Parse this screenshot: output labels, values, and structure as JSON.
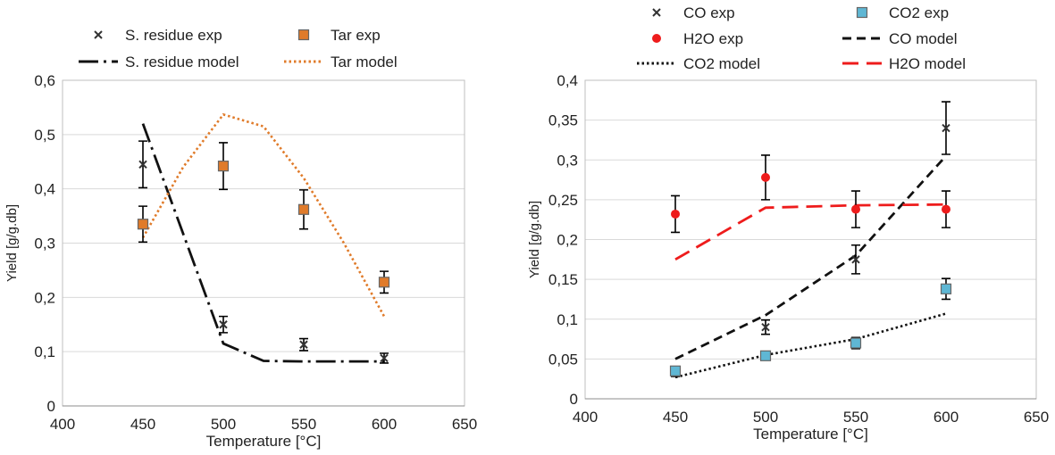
{
  "chart_data": [
    {
      "type": "scatter",
      "title": "",
      "xlabel": "Temperature [°C]",
      "ylabel": "Yield [g/g.db]",
      "xlim": [
        400,
        650
      ],
      "ylim": [
        0,
        0.6
      ],
      "xticks": [
        400,
        450,
        500,
        550,
        600,
        650
      ],
      "yticks": [
        0,
        0.1,
        0.2,
        0.3,
        0.4,
        0.5,
        0.6
      ],
      "xtick_labels": [
        "400",
        "450",
        "500",
        "550",
        "600",
        "650"
      ],
      "ytick_labels": [
        "0",
        "0,1",
        "0,2",
        "0,3",
        "0,4",
        "0,5",
        "0,6"
      ],
      "grid": "horizontal",
      "legend": "top",
      "series": [
        {
          "name": "S. residue exp",
          "kind": "markers",
          "marker": "x",
          "color": "#333333",
          "x": [
            450,
            500,
            550,
            600
          ],
          "y": [
            0.445,
            0.15,
            0.113,
            0.088
          ],
          "err": [
            0.043,
            0.015,
            0.011,
            0.009
          ]
        },
        {
          "name": "Tar exp",
          "kind": "markers",
          "marker": "square",
          "color": "#E07B2A",
          "x": [
            450,
            500,
            550,
            600
          ],
          "y": [
            0.335,
            0.442,
            0.362,
            0.228
          ],
          "err": [
            0.033,
            0.043,
            0.036,
            0.02
          ]
        },
        {
          "name": "S. residue model",
          "kind": "line",
          "dash": "longdash-dot",
          "color": "#111111",
          "x": [
            450,
            500,
            525,
            550,
            575,
            600
          ],
          "y": [
            0.52,
            0.115,
            0.083,
            0.082,
            0.082,
            0.082
          ]
        },
        {
          "name": "Tar model",
          "kind": "line",
          "dash": "dot",
          "color": "#E07B2A",
          "x": [
            450,
            475,
            500,
            525,
            550,
            575,
            600
          ],
          "y": [
            0.31,
            0.44,
            0.537,
            0.515,
            0.42,
            0.3,
            0.165
          ]
        }
      ]
    },
    {
      "type": "scatter",
      "title": "",
      "xlabel": "Temperature [°C]",
      "ylabel": "Yield [g/g.db]",
      "xlim": [
        400,
        650
      ],
      "ylim": [
        0,
        0.4
      ],
      "xticks": [
        400,
        450,
        500,
        550,
        600,
        650
      ],
      "yticks": [
        0,
        0.05,
        0.1,
        0.15,
        0.2,
        0.25,
        0.3,
        0.35,
        0.4
      ],
      "xtick_labels": [
        "400",
        "450",
        "500",
        "550",
        "600",
        "650"
      ],
      "ytick_labels": [
        "0",
        "0,05",
        "0,1",
        "0,15",
        "0,2",
        "0,25",
        "0,3",
        "0,35",
        "0,4"
      ],
      "grid": "horizontal",
      "legend": "top",
      "series": [
        {
          "name": "CO exp",
          "kind": "markers",
          "marker": "x",
          "color": "#333333",
          "x": [
            450,
            500,
            550,
            600
          ],
          "y": [
            0.033,
            0.09,
            0.175,
            0.34
          ],
          "err": [
            0.005,
            0.009,
            0.018,
            0.033
          ]
        },
        {
          "name": "CO2 exp",
          "kind": "markers",
          "marker": "square",
          "color": "#5FB7D4",
          "x": [
            450,
            500,
            550,
            600
          ],
          "y": [
            0.035,
            0.054,
            0.07,
            0.138
          ],
          "err": [
            0.004,
            0.005,
            0.007,
            0.013
          ]
        },
        {
          "name": "H2O exp",
          "kind": "markers",
          "marker": "circle",
          "color": "#EE1C1C",
          "x": [
            450,
            500,
            550,
            600
          ],
          "y": [
            0.232,
            0.278,
            0.238,
            0.238
          ],
          "err": [
            0.023,
            0.028,
            0.023,
            0.023
          ]
        },
        {
          "name": "CO model",
          "kind": "line",
          "dash": "dash",
          "color": "#111111",
          "x": [
            450,
            500,
            550,
            600
          ],
          "y": [
            0.05,
            0.105,
            0.18,
            0.305
          ]
        },
        {
          "name": "CO2 model",
          "kind": "line",
          "dash": "dot",
          "color": "#111111",
          "x": [
            450,
            500,
            550,
            600
          ],
          "y": [
            0.027,
            0.055,
            0.075,
            0.107
          ]
        },
        {
          "name": "H2O model",
          "kind": "line",
          "dash": "longdash",
          "color": "#EE1C1C",
          "x": [
            450,
            500,
            550,
            600
          ],
          "y": [
            0.175,
            0.24,
            0.243,
            0.244
          ]
        }
      ]
    }
  ]
}
